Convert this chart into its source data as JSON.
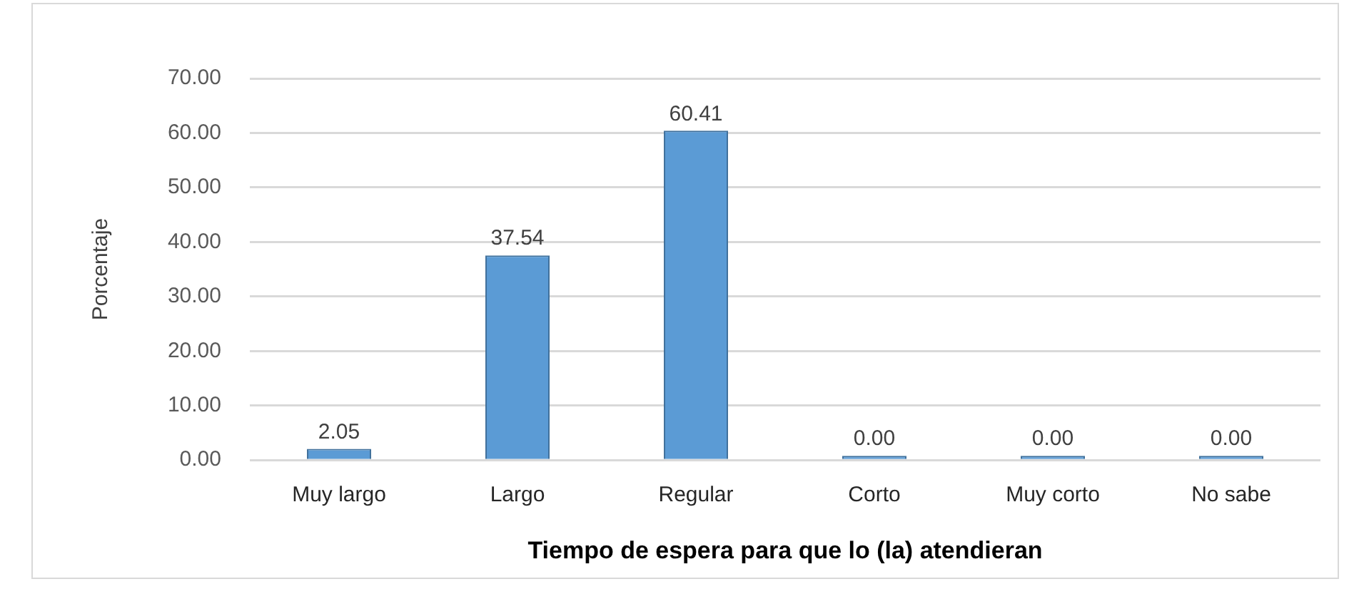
{
  "chart_data": {
    "type": "bar",
    "xlabel": "Tiempo de espera para que lo (la) atendieran",
    "ylabel": "Porcentaje",
    "categories": [
      "Muy largo",
      "Largo",
      "Regular",
      "Corto",
      "Muy corto",
      "No sabe"
    ],
    "values": [
      2.05,
      37.54,
      60.41,
      0,
      0,
      0
    ],
    "value_labels": [
      "2.05",
      "37.54",
      "60.41",
      "0.00",
      "0.00",
      "0.00"
    ],
    "color": "#5b9bd5",
    "ylim": [
      0,
      70
    ],
    "yticks": [
      {
        "value": 0,
        "label": "0.00"
      },
      {
        "value": 10,
        "label": "10.00"
      },
      {
        "value": 20,
        "label": "20.00"
      },
      {
        "value": 30,
        "label": "30.00"
      },
      {
        "value": 40,
        "label": "40.00"
      },
      {
        "value": 50,
        "label": "50.00"
      },
      {
        "value": 60,
        "label": "60.00"
      },
      {
        "value": 70,
        "label": "70.00"
      }
    ],
    "grid": "y",
    "legend": false
  }
}
